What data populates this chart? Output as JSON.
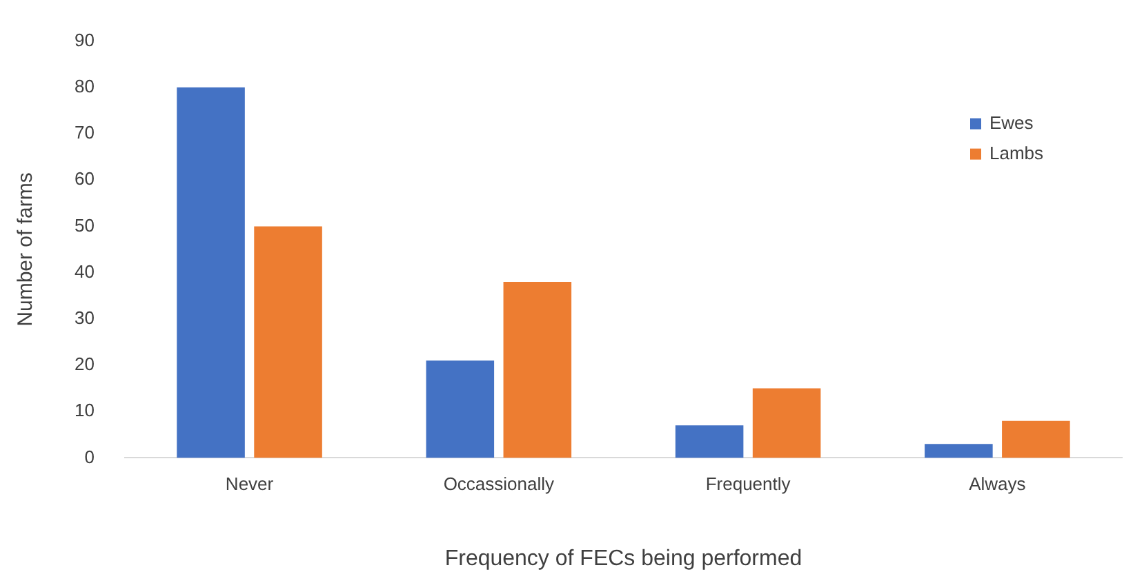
{
  "chart_data": {
    "type": "bar",
    "xlabel": "Frequency of FECs being performed",
    "ylabel": "Number of farms",
    "categories": [
      "Never",
      "Occassionally",
      "Frequently",
      "Always"
    ],
    "series": [
      {
        "name": "Ewes",
        "color": "#4472c4",
        "values": [
          80,
          21,
          7,
          3
        ]
      },
      {
        "name": "Lambs",
        "color": "#ed7d31",
        "values": [
          50,
          38,
          15,
          8
        ]
      }
    ],
    "ylim": [
      0,
      90
    ],
    "yticks": [
      0,
      10,
      20,
      30,
      40,
      50,
      60,
      70,
      80,
      90
    ],
    "grid": false,
    "legend": "right"
  }
}
